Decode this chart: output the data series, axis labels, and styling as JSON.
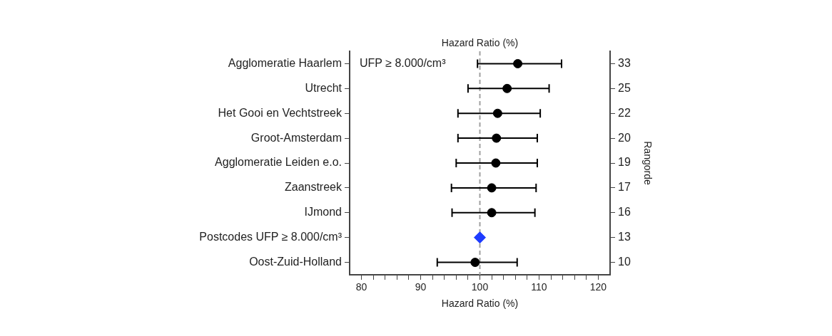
{
  "chart_data": {
    "type": "scatter",
    "orientation": "horizontal",
    "title": "Hazard Ratio (%)",
    "xlabel": "Hazard Ratio (%)",
    "y2label": "Rangorde",
    "categories": [
      "Agglomeratie Haarlem",
      "Utrecht",
      "Het Gooi en Vechtstreek",
      "Groot-Amsterdam",
      "Agglomeratie Leiden e.o.",
      "Zaanstreek",
      "IJmond",
      "Postcodes UFP ≥ 8.000/cm³",
      "Oost-Zuid-Holland"
    ],
    "y2_categories": [
      "33",
      "25",
      "22",
      "20",
      "19",
      "17",
      "16",
      "13",
      "10"
    ],
    "series": [
      {
        "color": "#000000",
        "marker": "circle",
        "values": [
          106.4,
          104.6,
          103.0,
          102.8,
          102.7,
          102.0,
          102.0,
          null,
          99.2
        ],
        "errors": [
          [
            99.6,
            113.8
          ],
          [
            98.0,
            111.7
          ],
          [
            96.3,
            110.2
          ],
          [
            96.3,
            109.7
          ],
          [
            96.0,
            109.7
          ],
          [
            95.2,
            109.5
          ],
          [
            95.3,
            109.3
          ],
          null,
          [
            92.8,
            106.3
          ]
        ]
      },
      {
        "color": "#1e3cff",
        "marker": "diamond",
        "values": [
          null,
          null,
          null,
          null,
          null,
          null,
          null,
          100,
          null
        ]
      }
    ],
    "xlim": [
      78,
      122
    ],
    "xticks": [
      80,
      {
        "value": 82,
        "label": null
      },
      {
        "value": 84,
        "label": null
      },
      {
        "value": 86,
        "label": null
      },
      {
        "value": 88,
        "label": null
      },
      90,
      {
        "value": 92,
        "label": null
      },
      {
        "value": 94,
        "label": null
      },
      {
        "value": 96,
        "label": null
      },
      {
        "value": 98,
        "label": null
      },
      100,
      {
        "value": 102,
        "label": null
      },
      {
        "value": 104,
        "label": null
      },
      {
        "value": 106,
        "label": null
      },
      {
        "value": 108,
        "label": null
      },
      110,
      {
        "value": 112,
        "label": null
      },
      {
        "value": 114,
        "label": null
      },
      {
        "value": 116,
        "label": null
      },
      {
        "value": 118,
        "label": null
      },
      120
    ],
    "ref_lines": [
      {
        "axis": "x",
        "value": 100,
        "color": "#a0a0a0",
        "line_style": "dashed"
      }
    ],
    "annotations": [
      "UFP ≥ 8.000/cm³"
    ],
    "grid": false
  }
}
